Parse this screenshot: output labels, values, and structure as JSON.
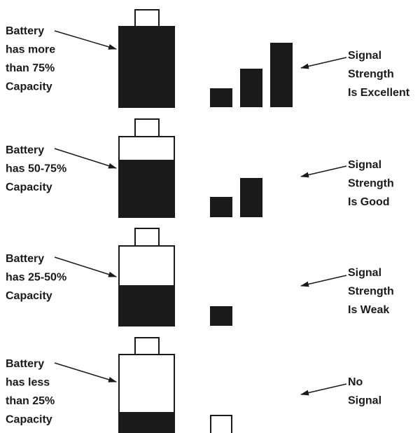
{
  "rows": [
    {
      "battery_lines": [
        "Battery",
        "has more",
        "than 75%",
        "Capacity"
      ],
      "signal_lines": [
        "Signal",
        "Strength",
        "Is Excellent"
      ]
    },
    {
      "battery_lines": [
        "Battery",
        "has 50-75%",
        "Capacity"
      ],
      "signal_lines": [
        "Signal",
        "Strength",
        "Is Good"
      ]
    },
    {
      "battery_lines": [
        "Battery",
        "has 25-50%",
        "Capacity"
      ],
      "signal_lines": [
        "Signal",
        "Strength",
        "Is Weak"
      ]
    },
    {
      "battery_lines": [
        "Battery",
        "has less",
        "than 25%",
        "Capacity"
      ],
      "signal_lines": [
        "No",
        "Signal"
      ]
    }
  ]
}
